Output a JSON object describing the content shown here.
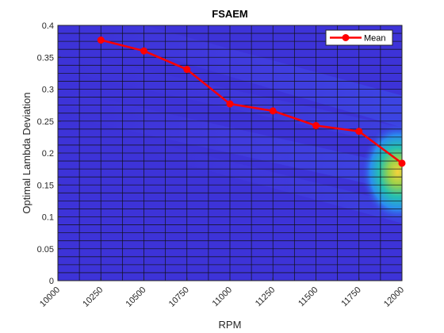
{
  "chart_data": {
    "type": "line",
    "title": "FSAEM",
    "xlabel": "RPM",
    "ylabel": "Optimal Lambda Deviation",
    "xlim": [
      10000,
      12000
    ],
    "ylim": [
      0,
      0.4
    ],
    "xticks": [
      10000,
      10250,
      10500,
      10750,
      11000,
      11250,
      11500,
      11750,
      12000
    ],
    "xtick_labels": [
      "10000",
      "10250",
      "10500",
      "10750",
      "11000",
      "11250",
      "11500",
      "11750",
      "12000"
    ],
    "yticks": [
      0,
      0.05,
      0.1,
      0.15,
      0.2,
      0.25,
      0.3,
      0.35,
      0.4
    ],
    "ytick_labels": [
      "0",
      "0.05",
      "0.1",
      "0.15",
      "0.2",
      "0.25",
      "0.3",
      "0.35",
      "0.4"
    ],
    "grid": true,
    "legend_position": "top-right",
    "background": "heatmap",
    "series": [
      {
        "name": "Mean",
        "color": "#ff0000",
        "marker": "circle",
        "x": [
          10250,
          10500,
          10750,
          11000,
          11250,
          11500,
          11750,
          12000
        ],
        "y": [
          0.377,
          0.36,
          0.331,
          0.277,
          0.266,
          0.243,
          0.234,
          0.184
        ]
      }
    ]
  }
}
